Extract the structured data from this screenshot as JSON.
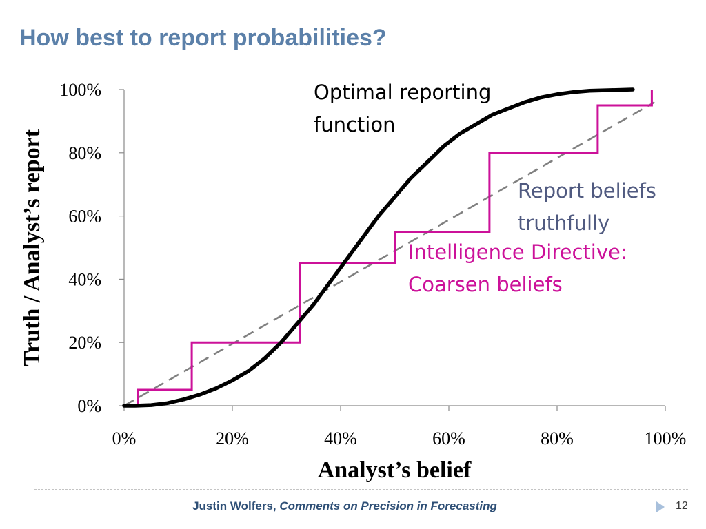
{
  "slide": {
    "title": "How best to report probabilities?",
    "footer_author": "Justin Wolfers,",
    "footer_work": "Comments on Precision in Forecasting",
    "page_number": "12"
  },
  "colors": {
    "title": "#5b80a9",
    "optimal": "#000000",
    "truthful": "#808080",
    "directive": "#cc1199",
    "truthful_label": "#505a80"
  },
  "chart_data": {
    "type": "line",
    "xlabel": "Analyst’s belief",
    "ylabel": "Truth / Analyst’s report",
    "xlim": [
      0,
      100
    ],
    "ylim": [
      0,
      100
    ],
    "x_ticks": [
      "0%",
      "20%",
      "40%",
      "60%",
      "80%",
      "100%"
    ],
    "y_ticks": [
      "0%",
      "20%",
      "40%",
      "60%",
      "80%",
      "100%"
    ],
    "grid": false,
    "legend": "none",
    "series": [
      {
        "key": "optimal",
        "style": "solid",
        "points": [
          [
            0,
            0
          ],
          [
            2,
            0
          ],
          [
            5,
            0.2
          ],
          [
            8,
            0.8
          ],
          [
            11,
            2
          ],
          [
            14,
            3.5
          ],
          [
            17,
            5.5
          ],
          [
            20,
            8
          ],
          [
            23,
            11
          ],
          [
            26,
            15
          ],
          [
            29,
            20
          ],
          [
            32,
            26
          ],
          [
            35,
            32
          ],
          [
            38,
            39
          ],
          [
            41,
            46
          ],
          [
            44,
            53
          ],
          [
            47,
            60
          ],
          [
            50,
            66
          ],
          [
            53,
            72
          ],
          [
            56,
            77
          ],
          [
            59,
            82
          ],
          [
            62,
            86
          ],
          [
            65,
            89
          ],
          [
            68,
            92
          ],
          [
            71,
            94
          ],
          [
            74,
            96
          ],
          [
            77,
            97.5
          ],
          [
            80,
            98.5
          ],
          [
            83,
            99.2
          ],
          [
            86,
            99.6
          ],
          [
            90,
            99.8
          ],
          [
            94,
            100
          ]
        ]
      },
      {
        "key": "truthful",
        "style": "dashed",
        "points": [
          [
            0,
            0
          ],
          [
            98,
            96
          ]
        ]
      },
      {
        "key": "directive",
        "style": "step",
        "points": [
          [
            2.5,
            0
          ],
          [
            2.5,
            5
          ],
          [
            12.5,
            5
          ],
          [
            12.5,
            20
          ],
          [
            32.5,
            20
          ],
          [
            32.5,
            45
          ],
          [
            50,
            45
          ],
          [
            50,
            55
          ],
          [
            67.5,
            55
          ],
          [
            67.5,
            80
          ],
          [
            87.5,
            80
          ],
          [
            87.5,
            95
          ],
          [
            97.5,
            95
          ],
          [
            97.5,
            100
          ]
        ]
      }
    ],
    "annotations": [
      {
        "key": "optimal",
        "lines": [
          "Optimal reporting",
          "function"
        ]
      },
      {
        "key": "truthful",
        "lines": [
          "Report beliefs",
          "truthfully"
        ]
      },
      {
        "key": "directive",
        "lines": [
          "Intelligence Directive:",
          "Coarsen beliefs"
        ]
      }
    ]
  }
}
